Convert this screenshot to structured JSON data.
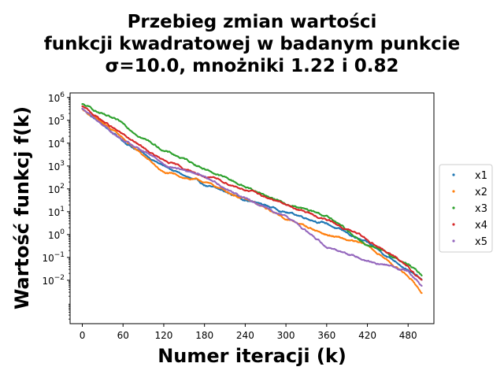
{
  "chart_data": {
    "type": "scatter",
    "title_lines": [
      "Przebieg zmian wartości",
      "funkcji kwadratowej w badanym punkcie",
      "σ=10.0, mnożniki 1.22 i 0.82"
    ],
    "xlabel": "Numer iteracji (k)",
    "ylabel": "Wartość funkcj f(k)",
    "xlim": [
      -18,
      518
    ],
    "ylim_log10": [
      -3.9,
      6.2
    ],
    "yscale": "log",
    "x_ticks": [
      0,
      60,
      120,
      180,
      240,
      300,
      360,
      420,
      480
    ],
    "x_tick_labels": [
      "0",
      "60",
      "120",
      "180",
      "240",
      "300",
      "360",
      "420",
      "480"
    ],
    "y_ticks_log10": [
      -2,
      -1,
      0,
      1,
      2,
      3,
      4,
      5,
      6
    ],
    "y_tick_labels": [
      {
        "base": "10",
        "exp": "−2"
      },
      {
        "base": "10",
        "exp": "−1"
      },
      {
        "base": "10",
        "exp": "0"
      },
      {
        "base": "10",
        "exp": "1"
      },
      {
        "base": "10",
        "exp": "2"
      },
      {
        "base": "10",
        "exp": "3"
      },
      {
        "base": "10",
        "exp": "4"
      },
      {
        "base": "10",
        "exp": "5"
      },
      {
        "base": "10",
        "exp": "6"
      }
    ],
    "legend_position": "outside-right",
    "grid": false,
    "series": [
      {
        "name": "x1",
        "color": "#1f77b4",
        "x": [
          0,
          60,
          120,
          180,
          240,
          300,
          360,
          420,
          480,
          500
        ],
        "log10_y": [
          5.5,
          4.1,
          3.0,
          2.15,
          1.55,
          1.0,
          0.5,
          -0.4,
          -1.5,
          -2.0
        ]
      },
      {
        "name": "x2",
        "color": "#ff7f0e",
        "x": [
          0,
          60,
          120,
          180,
          240,
          300,
          360,
          420,
          480,
          500
        ],
        "log10_y": [
          5.5,
          4.2,
          2.7,
          2.3,
          1.55,
          0.7,
          0.0,
          -0.5,
          -1.8,
          -2.5
        ]
      },
      {
        "name": "x3",
        "color": "#2ca02c",
        "x": [
          0,
          60,
          120,
          180,
          240,
          300,
          360,
          420,
          480,
          500
        ],
        "log10_y": [
          5.7,
          4.8,
          3.7,
          2.9,
          2.1,
          1.35,
          0.8,
          -0.45,
          -1.3,
          -1.8
        ]
      },
      {
        "name": "x4",
        "color": "#d62728",
        "x": [
          0,
          60,
          120,
          180,
          240,
          300,
          360,
          420,
          480,
          500
        ],
        "log10_y": [
          5.6,
          4.35,
          3.2,
          2.55,
          2.0,
          1.3,
          0.65,
          -0.2,
          -1.4,
          -2.0
        ]
      },
      {
        "name": "x5",
        "color": "#9467bd",
        "x": [
          0,
          60,
          120,
          180,
          240,
          300,
          360,
          420,
          480,
          500
        ],
        "log10_y": [
          5.5,
          4.1,
          3.1,
          2.55,
          1.6,
          0.8,
          -0.5,
          -1.1,
          -1.6,
          -2.2
        ]
      }
    ]
  }
}
